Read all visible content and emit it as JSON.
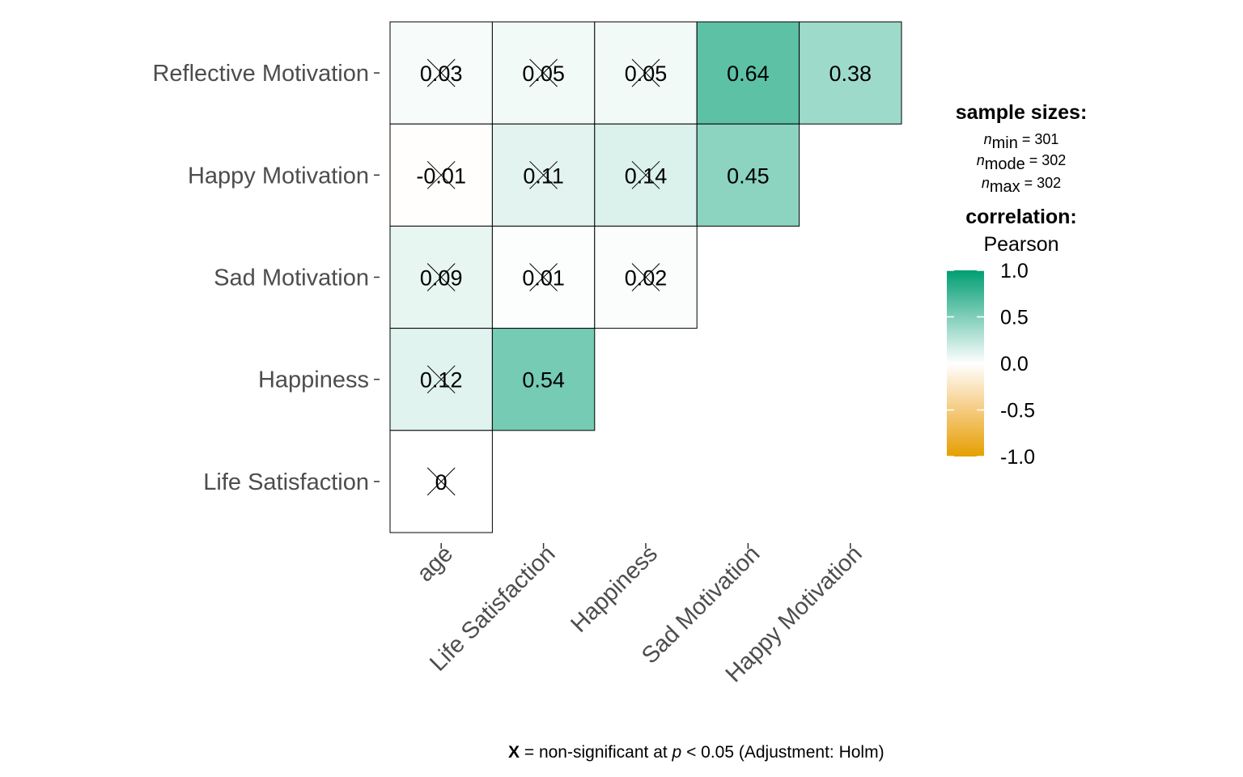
{
  "chart_data": {
    "type": "heatmap",
    "rows": [
      "Reflective Motivation",
      "Happy Motivation",
      "Sad Motivation",
      "Happiness",
      "Life Satisfaction"
    ],
    "columns": [
      "age",
      "Life Satisfaction",
      "Happiness",
      "Sad Motivation",
      "Happy Motivation"
    ],
    "cells": [
      {
        "row": "Reflective Motivation",
        "col": "age",
        "value": 0.03,
        "label": "0.03",
        "significant": false
      },
      {
        "row": "Reflective Motivation",
        "col": "Life Satisfaction",
        "value": 0.05,
        "label": "0.05",
        "significant": false
      },
      {
        "row": "Reflective Motivation",
        "col": "Happiness",
        "value": 0.05,
        "label": "0.05",
        "significant": false
      },
      {
        "row": "Reflective Motivation",
        "col": "Sad Motivation",
        "value": 0.64,
        "label": "0.64",
        "significant": true
      },
      {
        "row": "Reflective Motivation",
        "col": "Happy Motivation",
        "value": 0.38,
        "label": "0.38",
        "significant": true
      },
      {
        "row": "Happy Motivation",
        "col": "age",
        "value": -0.01,
        "label": "-0.01",
        "significant": false
      },
      {
        "row": "Happy Motivation",
        "col": "Life Satisfaction",
        "value": 0.11,
        "label": "0.11",
        "significant": false
      },
      {
        "row": "Happy Motivation",
        "col": "Happiness",
        "value": 0.14,
        "label": "0.14",
        "significant": false
      },
      {
        "row": "Happy Motivation",
        "col": "Sad Motivation",
        "value": 0.45,
        "label": "0.45",
        "significant": true
      },
      {
        "row": "Sad Motivation",
        "col": "age",
        "value": 0.09,
        "label": "0.09",
        "significant": false
      },
      {
        "row": "Sad Motivation",
        "col": "Life Satisfaction",
        "value": 0.01,
        "label": "0.01",
        "significant": false
      },
      {
        "row": "Sad Motivation",
        "col": "Happiness",
        "value": 0.02,
        "label": "0.02",
        "significant": false
      },
      {
        "row": "Happiness",
        "col": "age",
        "value": 0.12,
        "label": "0.12",
        "significant": false
      },
      {
        "row": "Happiness",
        "col": "Life Satisfaction",
        "value": 0.54,
        "label": "0.54",
        "significant": true
      },
      {
        "row": "Life Satisfaction",
        "col": "age",
        "value": 0,
        "label": "0",
        "significant": false
      }
    ],
    "legend": {
      "sample_title": "sample sizes:",
      "n_min": {
        "symbol": "n",
        "sub": "min",
        "text": "= 301"
      },
      "n_mode": {
        "symbol": "n",
        "sub": "mode",
        "text": "= 302"
      },
      "n_max": {
        "symbol": "n",
        "sub": "max",
        "text": "= 302"
      },
      "correlation_title": "correlation:",
      "correlation_method": "Pearson",
      "colorbar_ticks": [
        "1.0",
        "0.5",
        "0.0",
        "-0.5",
        "-1.0"
      ],
      "colorbar_values": [
        1.0,
        0.5,
        0.0,
        -0.5,
        -1.0
      ],
      "colors": {
        "low": "#E69F00",
        "mid": "#FFFFFF",
        "high": "#009E73"
      }
    },
    "caption": {
      "marker": "X",
      "text1": " = non-significant at ",
      "p": "p",
      "text2": " < 0.05 (Adjustment: Holm)"
    }
  }
}
